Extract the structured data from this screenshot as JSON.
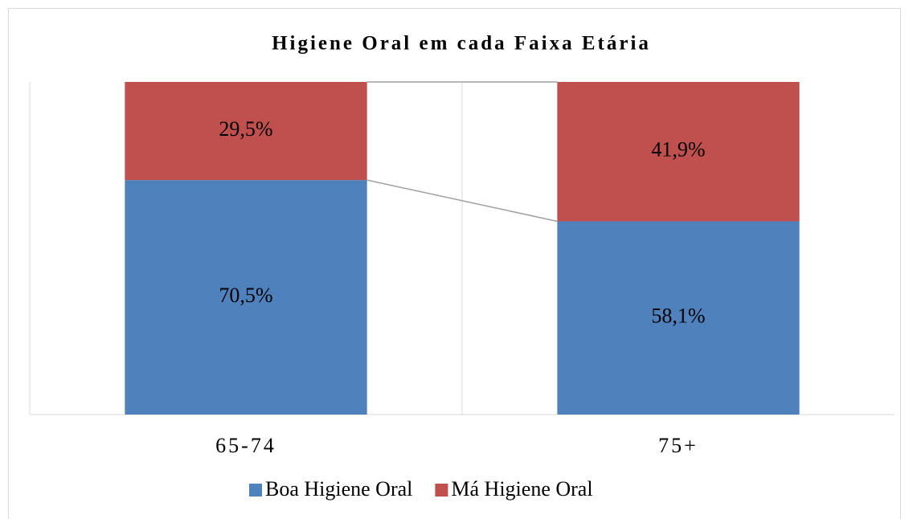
{
  "chart_data": {
    "type": "stacked_bar_100",
    "title": "Higiene Oral em cada Faixa Etária",
    "categories": [
      "65-74",
      "75+"
    ],
    "series": [
      {
        "name": "Boa Higiene Oral",
        "color": "#4f81bd",
        "values": [
          70.5,
          58.1
        ],
        "value_labels": [
          "70,5%",
          "58,1%"
        ]
      },
      {
        "name": "Má Higiene Oral",
        "color": "#c0504d",
        "values": [
          29.5,
          41.9
        ],
        "value_labels": [
          "29,5%",
          "41,9%"
        ]
      }
    ],
    "ylim": [
      0,
      100
    ],
    "legend": "bottom"
  }
}
